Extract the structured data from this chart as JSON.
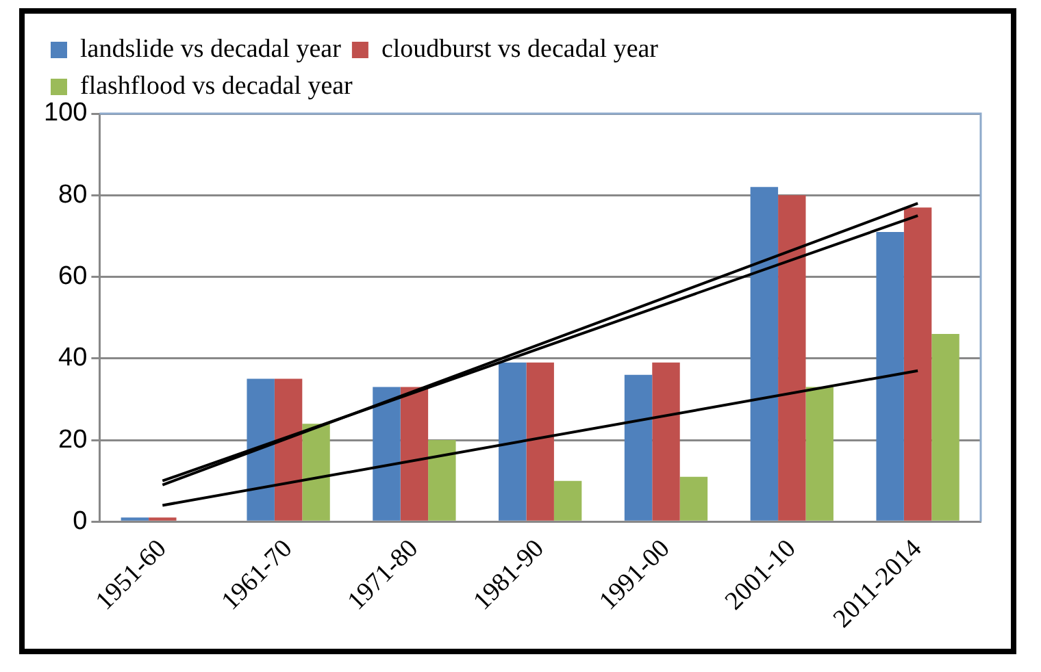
{
  "chart_data": {
    "type": "bar",
    "categories": [
      "1951-60",
      "1961-70",
      "1971-80",
      "1981-90",
      "1991-00",
      "2001-10",
      "2011-2014"
    ],
    "series": [
      {
        "name": "landslide vs decadal year",
        "color": "#4f81bd",
        "values": [
          1,
          35,
          33,
          39,
          36,
          82,
          71
        ]
      },
      {
        "name": "cloudburst vs decadal year",
        "color": "#c0504d",
        "values": [
          1,
          35,
          33,
          39,
          39,
          80,
          77
        ]
      },
      {
        "name": "flashflood vs decadal year",
        "color": "#9bbb59",
        "values": [
          0,
          24,
          20,
          10,
          11,
          33,
          46
        ]
      },
      {
        "type": "line",
        "color": "#000000",
        "x": [
          "1951-60",
          "2011-2014"
        ],
        "values": [
          9,
          78
        ]
      },
      {
        "type": "line",
        "color": "#000000",
        "x": [
          "1951-60",
          "2011-2014"
        ],
        "values": [
          10,
          75
        ]
      },
      {
        "type": "line",
        "color": "#000000",
        "x": [
          "1951-60",
          "2011-2014"
        ],
        "values": [
          4,
          37
        ]
      }
    ],
    "ylim": [
      0,
      100
    ],
    "yticks": [
      0,
      20,
      40,
      60,
      80,
      100
    ],
    "grid": "y",
    "legend": "top",
    "marker": "none",
    "line_style": "solid"
  }
}
